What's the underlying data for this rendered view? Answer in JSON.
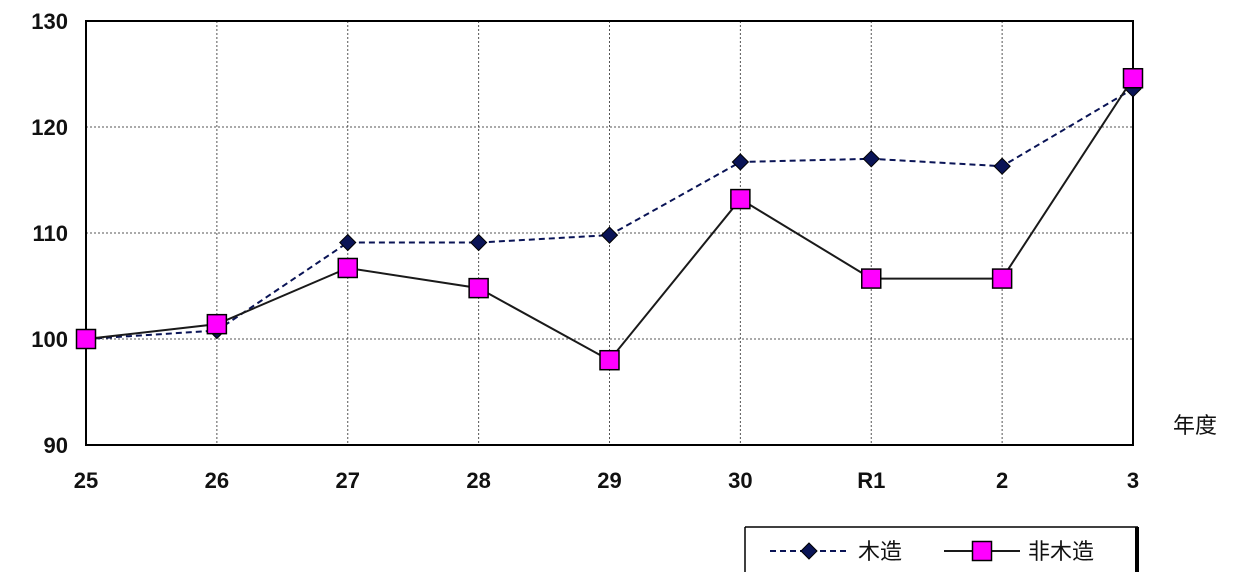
{
  "chart_data": {
    "type": "line",
    "categories": [
      "25",
      "26",
      "27",
      "28",
      "29",
      "30",
      "R1",
      "2",
      "3"
    ],
    "series": [
      {
        "name": "木造",
        "values": [
          100.0,
          100.8,
          109.1,
          109.1,
          109.8,
          116.7,
          117.0,
          116.3,
          123.6
        ],
        "color": "#0a1456",
        "line_style": "dashed",
        "marker": "diamond"
      },
      {
        "name": "非木造",
        "values": [
          100.0,
          101.4,
          106.7,
          104.8,
          98.0,
          113.2,
          105.7,
          105.7,
          124.6
        ],
        "color": "#1a1a1a",
        "marker_fill": "#ff00ff",
        "line_style": "solid",
        "marker": "square"
      }
    ],
    "title": "",
    "xlabel": "年度",
    "ylabel": "",
    "ylim": [
      90,
      130
    ],
    "yticks": [
      "90",
      "100",
      "110",
      "120",
      "130"
    ],
    "grid": true,
    "legend_position": "bottom-right"
  }
}
